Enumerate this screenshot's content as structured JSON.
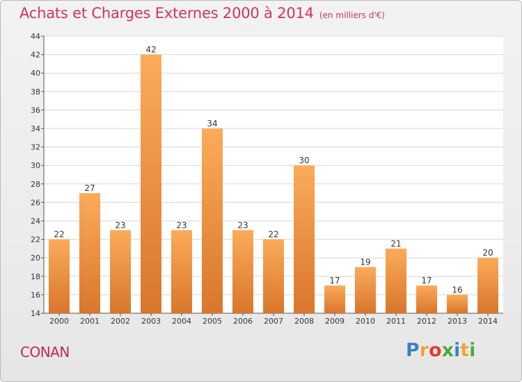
{
  "header": {
    "title": "Achats et Charges Externes 2000 à 2014",
    "unit": "(en milliers d'€)"
  },
  "footer": {
    "town": "CONAN",
    "logo": [
      "P",
      "r",
      "o",
      "x",
      "i",
      "t",
      "i"
    ]
  },
  "colors": {
    "title": "#d2335f",
    "bar_light": "#fbab5a",
    "bar_dark": "#d9762c",
    "logo": [
      "#3b80c3",
      "#f0a531",
      "#e53a2b",
      "#4aa93c",
      "#3b80c3",
      "#f0a531",
      "#4aa93c"
    ]
  },
  "chart_data": {
    "type": "bar",
    "title": "Achats et Charges Externes 2000 à 2014",
    "xlabel": "",
    "ylabel": "",
    "categories": [
      "2000",
      "2001",
      "2002",
      "2003",
      "2004",
      "2005",
      "2006",
      "2007",
      "2008",
      "2009",
      "2010",
      "2011",
      "2012",
      "2013",
      "2014"
    ],
    "values": [
      22,
      27,
      23,
      42,
      23,
      34,
      23,
      22,
      30,
      17,
      19,
      21,
      17,
      16,
      20
    ],
    "ylim": [
      14,
      44
    ],
    "yticks": [
      14,
      16,
      18,
      20,
      22,
      24,
      26,
      28,
      30,
      32,
      34,
      36,
      38,
      40,
      42,
      44
    ],
    "grid": true,
    "data_labels": true
  }
}
